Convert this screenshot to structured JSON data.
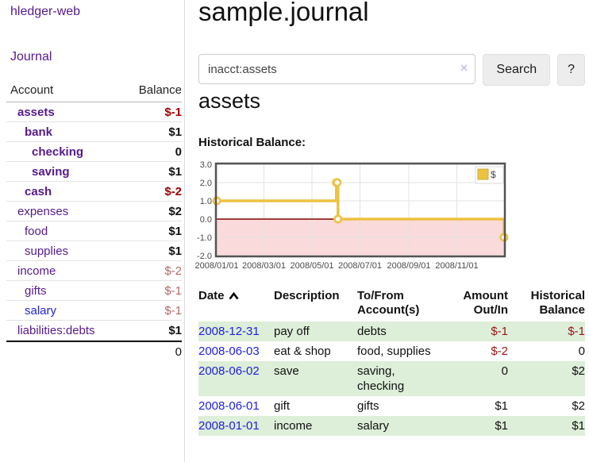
{
  "app": {
    "brand": "hledger-web",
    "nav": {
      "journal": "Journal"
    }
  },
  "sidebar": {
    "header": {
      "account": "Account",
      "balance": "Balance"
    },
    "accounts": [
      {
        "name": "assets",
        "balance": "$-1"
      },
      {
        "name": "bank",
        "balance": "$1"
      },
      {
        "name": "checking",
        "balance": "0"
      },
      {
        "name": "saving",
        "balance": "$1"
      },
      {
        "name": "cash",
        "balance": "$-2"
      },
      {
        "name": "expenses",
        "balance": "$2"
      },
      {
        "name": "food",
        "balance": "$1"
      },
      {
        "name": "supplies",
        "balance": "$1"
      },
      {
        "name": "income",
        "balance": "$-2"
      },
      {
        "name": "gifts",
        "balance": "$-1"
      },
      {
        "name": "salary",
        "balance": "$-1"
      },
      {
        "name": "liabilities:debts",
        "balance": "$1"
      }
    ],
    "total": "0"
  },
  "header": {
    "title": "sample.journal"
  },
  "search": {
    "value": "inacct:assets",
    "clear_icon": "×",
    "button_label": "Search",
    "help_label": "?"
  },
  "register": {
    "account_title": "assets",
    "chart_label": "Historical Balance:"
  },
  "chart_data": {
    "type": "line",
    "steps": true,
    "title": "Historical Balance",
    "series": [
      {
        "name": "$",
        "color": "#edc240",
        "points": [
          [
            "2008-01-01",
            1
          ],
          [
            "2008-06-01",
            2
          ],
          [
            "2008-06-02",
            2
          ],
          [
            "2008-06-03",
            0
          ],
          [
            "2008-12-31",
            -1
          ]
        ]
      }
    ],
    "xlim": [
      "2008-01-01",
      "2008-12-31"
    ],
    "ylim": [
      -2,
      3
    ],
    "x_ticks": [
      "2008/01/01",
      "2008/03/01",
      "2008/05/01",
      "2008/07/01",
      "2008/09/01",
      "2008/11/01"
    ],
    "y_ticks": [
      "3.0",
      "2.0",
      "1.0",
      "0.0",
      "-1.0",
      "-2.0"
    ],
    "legend": {
      "label": "$",
      "position": "top-right"
    },
    "grid": true,
    "colors": {
      "negative_region": "#fadada",
      "zero_line": "#8b0000",
      "gridline": "#e3e3e3",
      "plot_border": "#545454",
      "tick_text": "#4a4a4a"
    }
  },
  "register_table": {
    "headers": {
      "date": "Date",
      "description": "Description",
      "tofrom_line1": "To/From",
      "tofrom_line2": "Account(s)",
      "amount_line1": "Amount",
      "amount_line2": "Out/In",
      "balance_line1": "Historical",
      "balance_line2": "Balance"
    },
    "rows": [
      {
        "date": "2008-12-31",
        "description": "pay off",
        "accounts": "debts",
        "amount": "$-1",
        "balance": "$-1"
      },
      {
        "date": "2008-06-03",
        "description": "eat & shop",
        "accounts": "food, supplies",
        "amount": "$-2",
        "balance": "0"
      },
      {
        "date": "2008-06-02",
        "description": "save",
        "accounts": "saving, checking",
        "amount": "0",
        "balance": "$2"
      },
      {
        "date": "2008-06-01",
        "description": "gift",
        "accounts": "gifts",
        "amount": "$1",
        "balance": "$2"
      },
      {
        "date": "2008-01-01",
        "description": "income",
        "accounts": "salary",
        "amount": "$1",
        "balance": "$1"
      }
    ]
  }
}
